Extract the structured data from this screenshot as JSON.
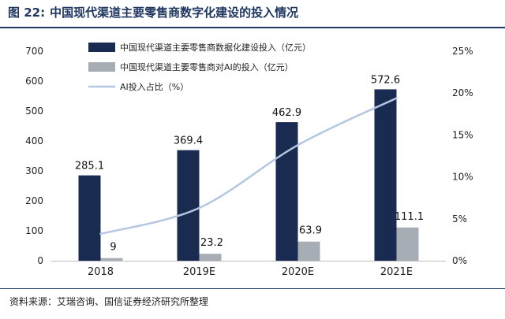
{
  "figure": {
    "number": "图 22:",
    "title": "中国现代渠道主要零售商数字化建设的投入情况",
    "source": "资料来源：艾瑞咨询、国信证券经济研究所整理"
  },
  "colors": {
    "bar_primary": "#1a2b52",
    "bar_secondary": "#a6adb5",
    "line": "#b4c6e0",
    "title_text": "#1f3760",
    "rule": "#1f3760"
  },
  "chart_data": {
    "type": "bar",
    "categories": [
      "2018",
      "2019E",
      "2020E",
      "2021E"
    ],
    "series": [
      {
        "name": "中国现代渠道主要零售商数据化建设投入（亿元）",
        "type": "bar",
        "axis": "left",
        "values": [
          285.1,
          369.4,
          462.9,
          572.6
        ],
        "labels": [
          "285.1",
          "369.4",
          "462.9",
          "572.6"
        ]
      },
      {
        "name": "中国现代渠道主要零售商对AI的投入（亿元）",
        "type": "bar",
        "axis": "left",
        "values": [
          9,
          23.2,
          63.9,
          111.1
        ],
        "labels": [
          "9",
          "23.2",
          "63.9",
          "111.1"
        ]
      },
      {
        "name": "AI投入占比（%）",
        "type": "line",
        "axis": "right",
        "values": [
          3.2,
          6.3,
          13.8,
          19.4
        ]
      }
    ],
    "y_left": {
      "min": 0,
      "max": 700,
      "ticks": [
        0,
        100,
        200,
        300,
        400,
        500,
        600,
        700
      ],
      "tick_labels": [
        "0",
        "100",
        "200",
        "300",
        "400",
        "500",
        "600",
        "700"
      ]
    },
    "y_right": {
      "min": 0,
      "max": 25,
      "ticks": [
        0,
        5,
        10,
        15,
        20,
        25
      ],
      "tick_labels": [
        "0%",
        "5%",
        "10%",
        "15%",
        "20%",
        "25%"
      ]
    },
    "grid": false,
    "legend_position": "top-left"
  }
}
